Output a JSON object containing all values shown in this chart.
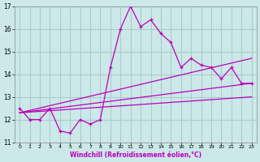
{
  "xlabel": "Windchill (Refroidissement éolien,°C)",
  "bg_color": "#cce8e8",
  "grid_color": "#aacccc",
  "line_color": "#bb00bb",
  "xlim": [
    -0.5,
    23.5
  ],
  "ylim": [
    11,
    17
  ],
  "yticks": [
    11,
    12,
    13,
    14,
    15,
    16,
    17
  ],
  "xticks": [
    0,
    1,
    2,
    3,
    4,
    5,
    6,
    7,
    8,
    9,
    10,
    11,
    12,
    13,
    14,
    15,
    16,
    17,
    18,
    19,
    20,
    21,
    22,
    23
  ],
  "series1_x": [
    0,
    1,
    2,
    3,
    4,
    5,
    6,
    7,
    8,
    9,
    10,
    11,
    12,
    13,
    14,
    15,
    16,
    17,
    18,
    19,
    20,
    21,
    22,
    23
  ],
  "series1_y": [
    12.5,
    12.0,
    12.0,
    12.5,
    11.5,
    11.4,
    12.0,
    11.8,
    12.0,
    14.3,
    16.0,
    17.0,
    16.1,
    16.4,
    15.8,
    15.4,
    14.3,
    14.7,
    14.4,
    14.3,
    13.8,
    14.3,
    13.6,
    13.6
  ],
  "trend1_x": [
    0,
    23
  ],
  "trend1_y": [
    12.3,
    13.0
  ],
  "trend2_x": [
    0,
    23
  ],
  "trend2_y": [
    12.3,
    13.6
  ],
  "trend3_x": [
    0,
    23
  ],
  "trend3_y": [
    12.3,
    14.7
  ]
}
